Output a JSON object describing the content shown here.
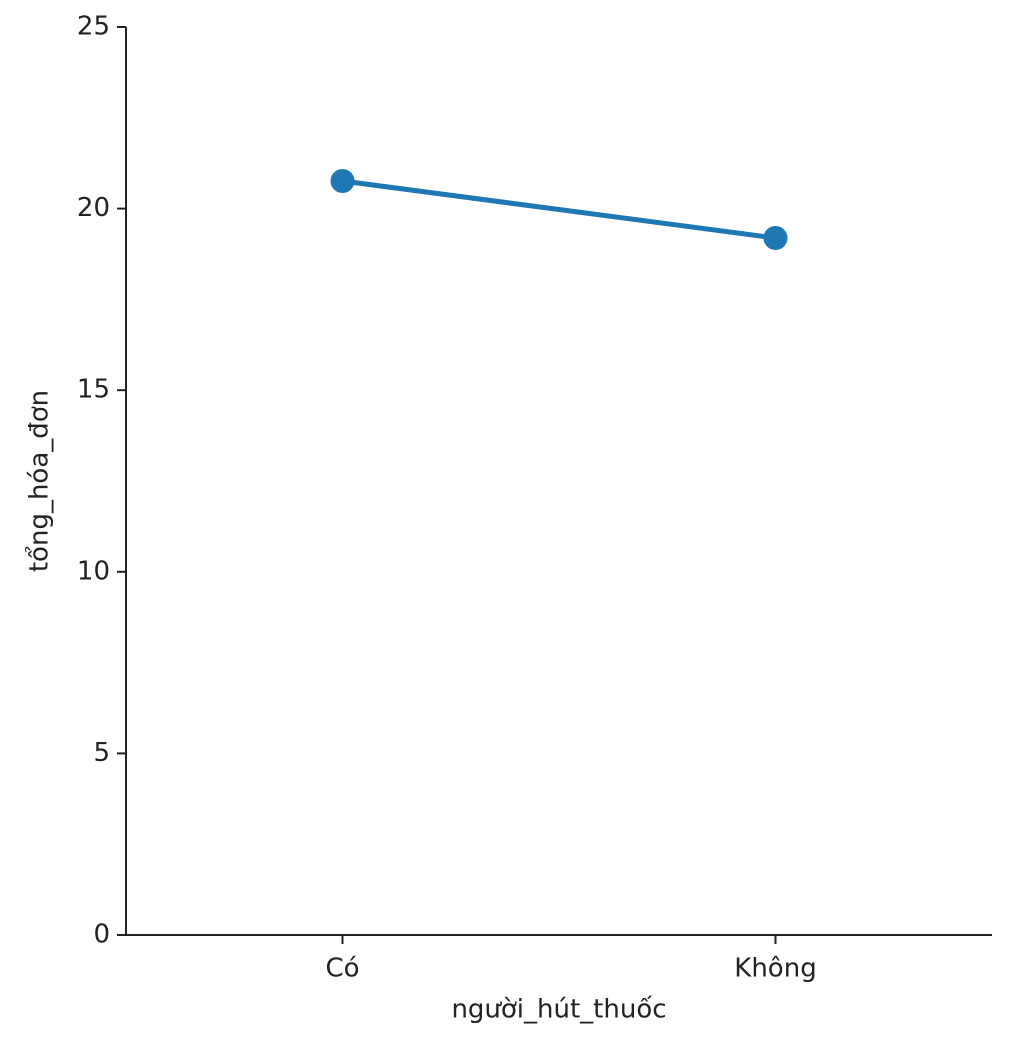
{
  "chart_data": {
    "type": "line",
    "x_label": "người_hút_thuốc",
    "y_label": "tổng_hóa_đơn",
    "categories": [
      "Có",
      "Không"
    ],
    "values": [
      20.76,
      19.19
    ],
    "color": "#1f77b4",
    "ylim": [
      0,
      25
    ],
    "yticks": [
      0,
      5,
      10,
      15,
      20,
      25
    ]
  }
}
